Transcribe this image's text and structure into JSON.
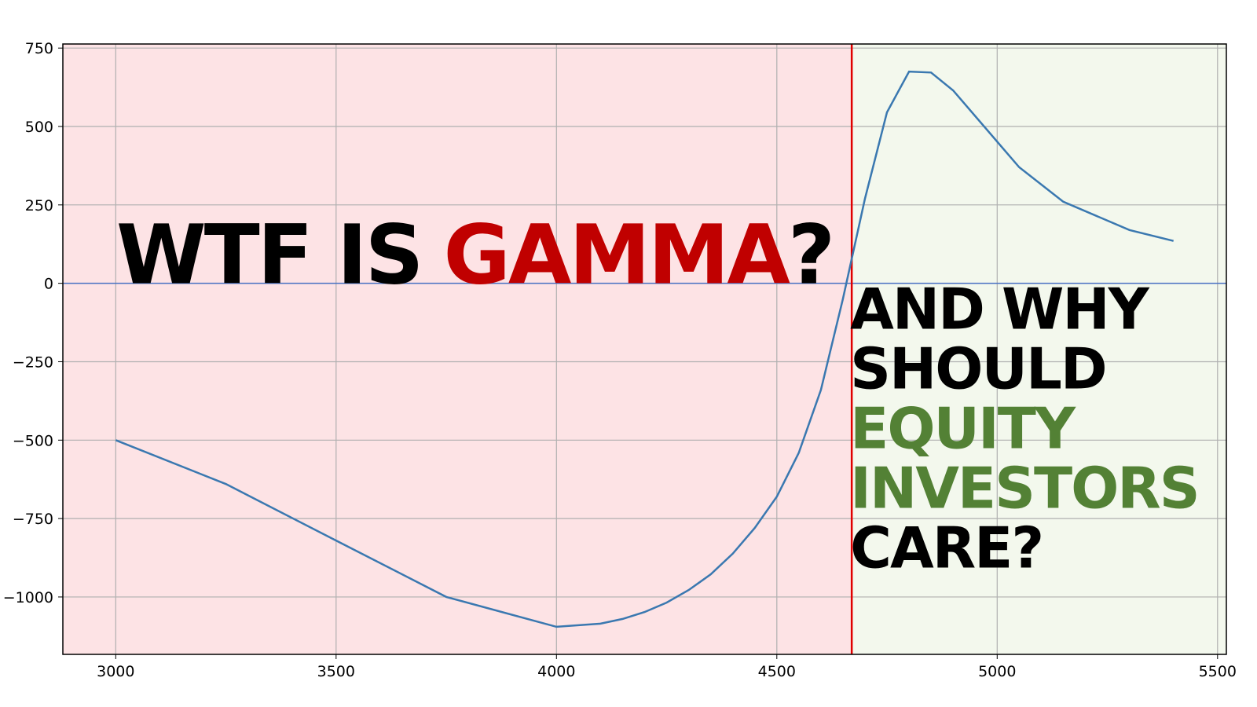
{
  "chart_data": {
    "type": "line",
    "title": [
      {
        "text": "WTF IS",
        "color": "#000000"
      },
      {
        "text": "GAMMA",
        "color": "#c00000"
      },
      {
        "text": "?",
        "color": "#000000"
      }
    ],
    "subtitle": [
      {
        "text": "AND WHY",
        "color": "#000000"
      },
      {
        "text": "SHOULD",
        "color": "#000000"
      },
      {
        "text": "EQUITY",
        "color": "#538135"
      },
      {
        "text": "INVESTORS",
        "color": "#538135"
      },
      {
        "text": "CARE?",
        "color": "#000000"
      }
    ],
    "x": [
      3000,
      3250,
      3500,
      3750,
      4000,
      4100,
      4150,
      4200,
      4250,
      4300,
      4350,
      4400,
      4450,
      4500,
      4550,
      4600,
      4650,
      4700,
      4750,
      4800,
      4850,
      4900,
      5050,
      5150,
      5300,
      5400
    ],
    "series": [
      {
        "color": "#3a78b0",
        "values": [
          -500,
          -640,
          -820,
          -1000,
          -1095,
          -1085,
          -1070,
          -1048,
          -1018,
          -978,
          -928,
          -862,
          -780,
          -680,
          -540,
          -340,
          -50,
          270,
          545,
          675,
          672,
          615,
          370,
          260,
          170,
          135
        ]
      }
    ],
    "vline": 4670,
    "vline_color": "#e00000",
    "hline": 0,
    "hline_color": "#4a72c4",
    "left_fill": "#fde3e5",
    "right_fill": "#f3f8ed",
    "xlim": [
      2880,
      5520
    ],
    "ylim": [
      -1183,
      763
    ],
    "xticks": [
      3000,
      3500,
      4000,
      4500,
      5000,
      5500
    ],
    "yticks": [
      {
        "value": -1000,
        "label": "−1000"
      },
      {
        "value": -750,
        "label": "−750"
      },
      {
        "value": -500,
        "label": "−500"
      },
      {
        "value": -250,
        "label": "−250"
      },
      0,
      250,
      500,
      750
    ],
    "grid": true
  }
}
